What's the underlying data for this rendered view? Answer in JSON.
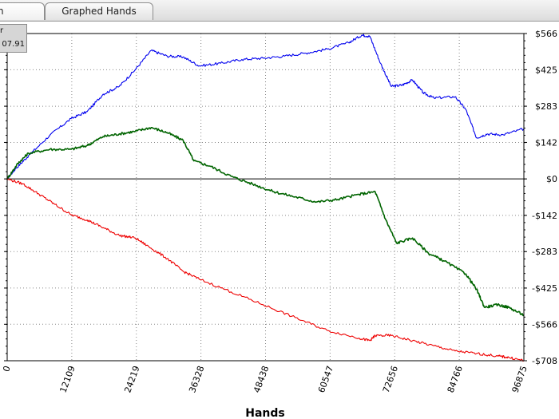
{
  "tabs": [
    {
      "label": "n"
    },
    {
      "label": "Graphed Hands"
    }
  ],
  "legend": {
    "line1": "r",
    "line2": "07.91"
  },
  "chart_data": {
    "type": "line",
    "xlabel": "Hands",
    "ylabel": "",
    "xlim": [
      0,
      96875
    ],
    "ylim": [
      -708,
      566
    ],
    "x_ticks": [
      0,
      12109,
      24219,
      36328,
      48438,
      60547,
      72656,
      84766,
      96875
    ],
    "y_ticks": [
      566,
      425,
      283,
      142,
      0,
      -142,
      -283,
      -425,
      -566,
      -708
    ],
    "y_tick_labels": [
      "$566",
      "$425",
      "$283",
      "$142",
      "$0",
      "-$142",
      "-$283",
      "-$425",
      "-$566",
      "-$708"
    ],
    "grid": true,
    "zero_line": true,
    "series": [
      {
        "color": "#0000ee",
        "points": [
          [
            0,
            0
          ],
          [
            1500,
            38
          ],
          [
            4000,
            90
          ],
          [
            8000,
            170
          ],
          [
            12000,
            235
          ],
          [
            15000,
            262
          ],
          [
            18000,
            330
          ],
          [
            21000,
            360
          ],
          [
            24000,
            425
          ],
          [
            27000,
            500
          ],
          [
            30000,
            478
          ],
          [
            33000,
            475
          ],
          [
            36000,
            440
          ],
          [
            40000,
            450
          ],
          [
            44000,
            465
          ],
          [
            48000,
            470
          ],
          [
            52000,
            478
          ],
          [
            56000,
            490
          ],
          [
            60000,
            505
          ],
          [
            64000,
            530
          ],
          [
            66500,
            560
          ],
          [
            68000,
            555
          ],
          [
            70000,
            450
          ],
          [
            72000,
            360
          ],
          [
            74000,
            365
          ],
          [
            76000,
            385
          ],
          [
            78000,
            335
          ],
          [
            80000,
            315
          ],
          [
            84000,
            320
          ],
          [
            86000,
            270
          ],
          [
            88000,
            160
          ],
          [
            90000,
            175
          ],
          [
            93000,
            172
          ],
          [
            96875,
            195
          ]
        ]
      },
      {
        "color": "#006400",
        "points": [
          [
            0,
            0
          ],
          [
            2000,
            60
          ],
          [
            4000,
            100
          ],
          [
            8000,
            115
          ],
          [
            12000,
            115
          ],
          [
            15000,
            130
          ],
          [
            18000,
            165
          ],
          [
            21000,
            175
          ],
          [
            24000,
            185
          ],
          [
            27000,
            200
          ],
          [
            30000,
            180
          ],
          [
            33000,
            150
          ],
          [
            35000,
            70
          ],
          [
            38000,
            50
          ],
          [
            42000,
            10
          ],
          [
            46000,
            -20
          ],
          [
            50000,
            -50
          ],
          [
            54000,
            -70
          ],
          [
            58000,
            -90
          ],
          [
            62000,
            -80
          ],
          [
            66000,
            -60
          ],
          [
            69000,
            -50
          ],
          [
            71000,
            -160
          ],
          [
            73000,
            -250
          ],
          [
            76000,
            -230
          ],
          [
            79000,
            -290
          ],
          [
            82000,
            -320
          ],
          [
            86000,
            -370
          ],
          [
            88000,
            -430
          ],
          [
            89500,
            -500
          ],
          [
            92000,
            -490
          ],
          [
            94000,
            -500
          ],
          [
            96875,
            -530
          ]
        ]
      },
      {
        "color": "#ee0000",
        "points": [
          [
            0,
            0
          ],
          [
            3000,
            -20
          ],
          [
            6000,
            -60
          ],
          [
            9000,
            -100
          ],
          [
            12000,
            -140
          ],
          [
            15000,
            -160
          ],
          [
            18000,
            -190
          ],
          [
            21000,
            -220
          ],
          [
            24000,
            -230
          ],
          [
            27000,
            -270
          ],
          [
            30000,
            -310
          ],
          [
            33000,
            -360
          ],
          [
            36000,
            -390
          ],
          [
            42000,
            -440
          ],
          [
            48000,
            -490
          ],
          [
            54000,
            -540
          ],
          [
            60000,
            -590
          ],
          [
            66000,
            -620
          ],
          [
            68000,
            -630
          ],
          [
            69000,
            -610
          ],
          [
            72000,
            -610
          ],
          [
            76000,
            -630
          ],
          [
            80000,
            -650
          ],
          [
            84000,
            -670
          ],
          [
            88000,
            -680
          ],
          [
            92000,
            -690
          ],
          [
            94000,
            -695
          ],
          [
            96875,
            -708
          ]
        ]
      }
    ]
  }
}
